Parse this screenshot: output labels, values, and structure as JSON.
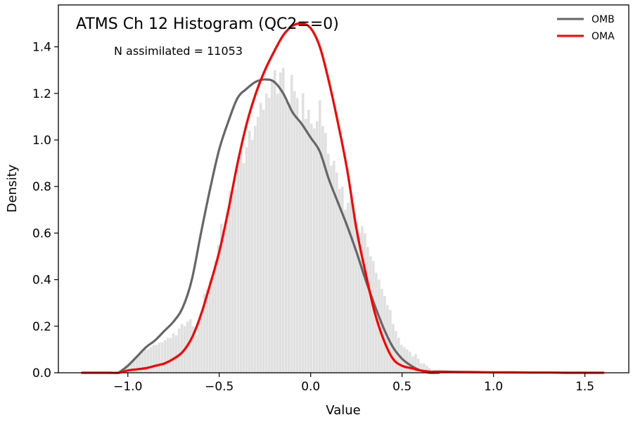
{
  "chart_data": {
    "type": "histogram",
    "title": "ATMS Ch 12 Histogram (QC2==0)",
    "annotation": "N assimilated = 11053",
    "xlabel": "Value",
    "ylabel": "Density",
    "xlim": [
      -1.38,
      1.74
    ],
    "ylim": [
      0,
      1.58
    ],
    "xticks": [
      -1.0,
      -0.5,
      0.0,
      0.5,
      1.0,
      1.5
    ],
    "xtick_labels": [
      "−1.0",
      "−0.5",
      "0.0",
      "0.5",
      "1.0",
      "1.5"
    ],
    "yticks": [
      0.0,
      0.2,
      0.4,
      0.6,
      0.8,
      1.0,
      1.2,
      1.4
    ],
    "ytick_labels": [
      "0.0",
      "0.2",
      "0.4",
      "0.6",
      "0.8",
      "1.0",
      "1.2",
      "1.4"
    ],
    "grid": false,
    "legend_position": "top-right",
    "histogram": {
      "color": "#e0e0e0",
      "bin_width": 0.0154,
      "bins_start": -1.05,
      "values": [
        0.01,
        0.02,
        0.03,
        0.04,
        0.05,
        0.06,
        0.07,
        0.08,
        0.09,
        0.1,
        0.1,
        0.11,
        0.12,
        0.12,
        0.13,
        0.13,
        0.14,
        0.15,
        0.15,
        0.17,
        0.16,
        0.19,
        0.21,
        0.2,
        0.22,
        0.23,
        0.2,
        0.16,
        0.22,
        0.24,
        0.34,
        0.36,
        0.39,
        0.42,
        0.48,
        0.55,
        0.64,
        0.6,
        0.69,
        0.78,
        0.76,
        0.79,
        0.89,
        0.95,
        0.9,
        0.97,
        1.04,
        1.0,
        1.06,
        1.1,
        1.16,
        1.13,
        1.2,
        1.18,
        1.25,
        1.3,
        1.2,
        1.29,
        1.31,
        1.17,
        1.16,
        1.28,
        1.21,
        1.18,
        1.08,
        1.2,
        1.09,
        1.13,
        1.07,
        1.05,
        1.08,
        1.17,
        1.06,
        1.03,
        0.94,
        0.89,
        0.91,
        0.86,
        0.79,
        0.8,
        0.7,
        0.73,
        0.74,
        0.71,
        0.64,
        0.6,
        0.63,
        0.6,
        0.54,
        0.5,
        0.48,
        0.43,
        0.4,
        0.36,
        0.33,
        0.29,
        0.27,
        0.21,
        0.18,
        0.15,
        0.12,
        0.11,
        0.1,
        0.09,
        0.07,
        0.08,
        0.06,
        0.04,
        0.04,
        0.03,
        0.02
      ]
    },
    "series": [
      {
        "name": "OMB",
        "color": "#666666",
        "x": [
          -1.05,
          -1.0,
          -0.95,
          -0.9,
          -0.85,
          -0.8,
          -0.75,
          -0.7,
          -0.65,
          -0.6,
          -0.55,
          -0.5,
          -0.45,
          -0.4,
          -0.35,
          -0.3,
          -0.25,
          -0.2,
          -0.15,
          -0.1,
          -0.05,
          0.0,
          0.05,
          0.1,
          0.15,
          0.2,
          0.25,
          0.3,
          0.35,
          0.4,
          0.45,
          0.5,
          0.55,
          0.6,
          0.65,
          0.7
        ],
        "y": [
          0.0,
          0.03,
          0.07,
          0.11,
          0.14,
          0.18,
          0.22,
          0.28,
          0.4,
          0.6,
          0.79,
          0.96,
          1.08,
          1.18,
          1.22,
          1.25,
          1.26,
          1.25,
          1.2,
          1.12,
          1.07,
          1.01,
          0.95,
          0.83,
          0.73,
          0.63,
          0.52,
          0.4,
          0.29,
          0.19,
          0.11,
          0.06,
          0.03,
          0.01,
          0.0,
          0.0
        ]
      },
      {
        "name": "OMA",
        "color": "#ff0000",
        "x": [
          -1.25,
          -1.1,
          -1.05,
          -1.0,
          -0.95,
          -0.9,
          -0.85,
          -0.8,
          -0.75,
          -0.7,
          -0.65,
          -0.6,
          -0.55,
          -0.5,
          -0.45,
          -0.4,
          -0.35,
          -0.3,
          -0.25,
          -0.2,
          -0.15,
          -0.1,
          -0.05,
          0.0,
          0.05,
          0.1,
          0.15,
          0.2,
          0.25,
          0.3,
          0.35,
          0.4,
          0.45,
          0.5,
          0.55,
          0.6,
          0.65,
          0.7,
          0.8,
          0.9,
          1.0,
          1.1,
          1.2,
          1.3,
          1.4,
          1.5,
          1.6
        ],
        "y": [
          0.0,
          0.0,
          0.0,
          0.01,
          0.015,
          0.02,
          0.03,
          0.04,
          0.06,
          0.09,
          0.15,
          0.25,
          0.38,
          0.52,
          0.7,
          0.9,
          1.07,
          1.2,
          1.3,
          1.38,
          1.45,
          1.49,
          1.5,
          1.48,
          1.4,
          1.25,
          1.07,
          0.87,
          0.62,
          0.43,
          0.26,
          0.14,
          0.06,
          0.03,
          0.02,
          0.01,
          0.005,
          0.005,
          0.004,
          0.003,
          0.002,
          0.002,
          0.001,
          0.001,
          0.0,
          0.0,
          0.0
        ]
      }
    ]
  }
}
